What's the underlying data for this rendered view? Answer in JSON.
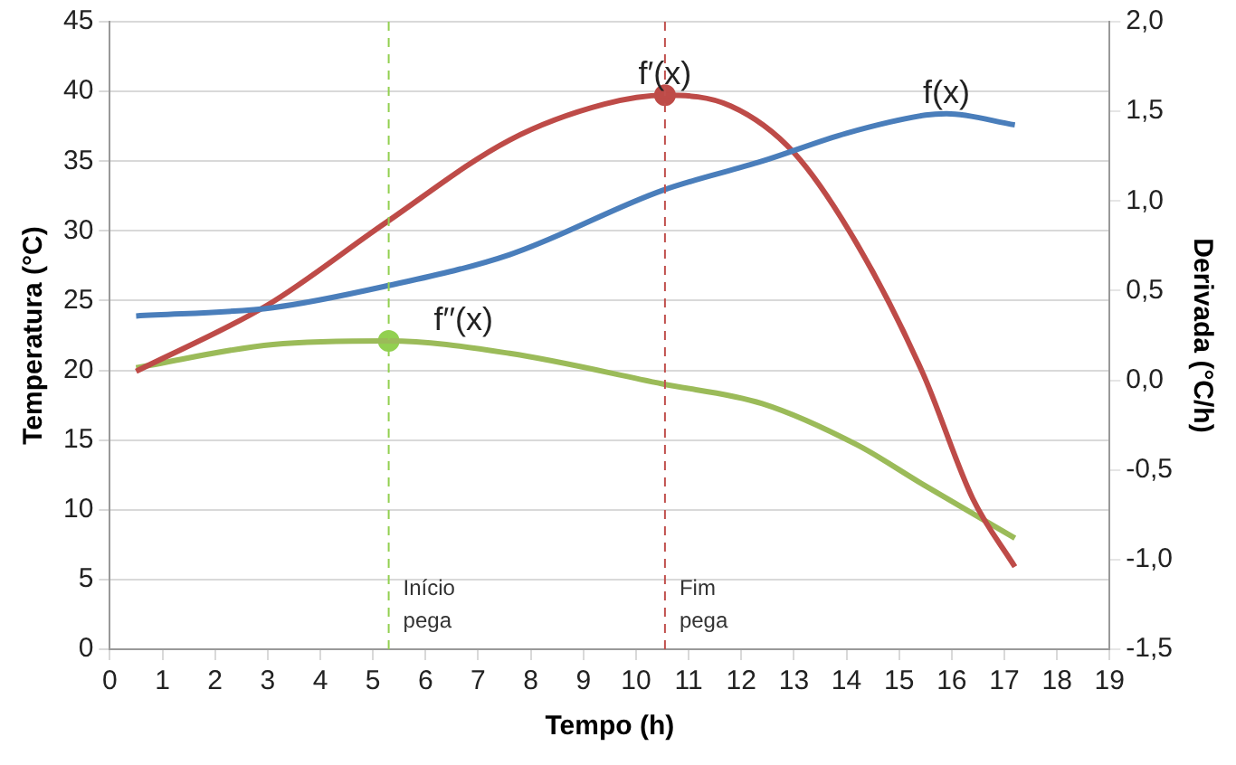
{
  "chart_data": {
    "type": "line",
    "xlabel": "Tempo (h)",
    "ylabel": "Temperatura (°C)",
    "y2label": "Derivada (°C/h)",
    "xlim": [
      0,
      19
    ],
    "xticks": [
      0,
      1,
      2,
      3,
      4,
      5,
      6,
      7,
      8,
      9,
      10,
      11,
      12,
      13,
      14,
      15,
      16,
      17,
      18,
      19
    ],
    "ylim": [
      0,
      45
    ],
    "yticks": [
      0,
      5,
      10,
      15,
      20,
      25,
      30,
      35,
      40,
      45
    ],
    "y2lim": [
      -1.5,
      2
    ],
    "y2ticks": [
      {
        "value": -1.5,
        "label": "-1,5"
      },
      {
        "value": -1,
        "label": "-1,0"
      },
      {
        "value": -0.5,
        "label": "-0,5"
      },
      {
        "value": 0,
        "label": "0,0"
      },
      {
        "value": 0.5,
        "label": "0,5"
      },
      {
        "value": 1,
        "label": "1,0"
      },
      {
        "value": 1.5,
        "label": "1,5"
      },
      {
        "value": 2,
        "label": "2,0"
      }
    ],
    "grid": "y",
    "legend": false,
    "marker": "none",
    "line_style": "solid",
    "series": [
      {
        "name": "f(x)",
        "color": "#4a7ebb",
        "x": [
          0.5,
          3.1,
          5.2,
          7.6,
          10.5,
          12.4,
          14,
          15.5,
          15.9,
          17.2
        ],
        "values": [
          23.9,
          24.5,
          26,
          28.3,
          32.9,
          35,
          37,
          38.3,
          38.4,
          37.6
        ]
      },
      {
        "name": "f′(x)",
        "color": "#be4b48",
        "axis": "y2",
        "x": [
          0.5,
          3,
          5.2,
          7.6,
          9.4,
          10.55,
          11.8,
          13,
          14.2,
          15.45,
          16.4,
          17.2
        ],
        "values": [
          0.05,
          0.42,
          0.87,
          1.34,
          1.54,
          1.59,
          1.53,
          1.27,
          0.76,
          0.04,
          -0.66,
          -1.04
        ]
      },
      {
        "name": "f′′(x)",
        "color": "#9bbb59",
        "axis": "y2",
        "x": [
          0.5,
          3.1,
          5.3,
          7.6,
          10.5,
          12.4,
          14.2,
          15.45,
          17.2
        ],
        "values": [
          0.07,
          0.2,
          0.22,
          0.15,
          -0.02,
          -0.13,
          -0.36,
          -0.58,
          -0.88
        ]
      },
      {
        "type": "scatter",
        "marker": "circle",
        "color": "#be4b48",
        "axis": "y2",
        "x": [
          10.55
        ],
        "values": [
          1.59
        ]
      },
      {
        "type": "scatter",
        "marker": "circle",
        "color": "#92d050",
        "axis": "y2",
        "x": [
          5.3
        ],
        "values": [
          0.22
        ]
      }
    ],
    "ref_lines": [
      {
        "axis": "x",
        "value": 5.3,
        "label": "Início pega",
        "color": "#92d050",
        "line_style": "dashed"
      },
      {
        "axis": "x",
        "value": 10.55,
        "label": "Fim pega",
        "color": "#c0504d",
        "line_style": "dashed"
      }
    ]
  }
}
